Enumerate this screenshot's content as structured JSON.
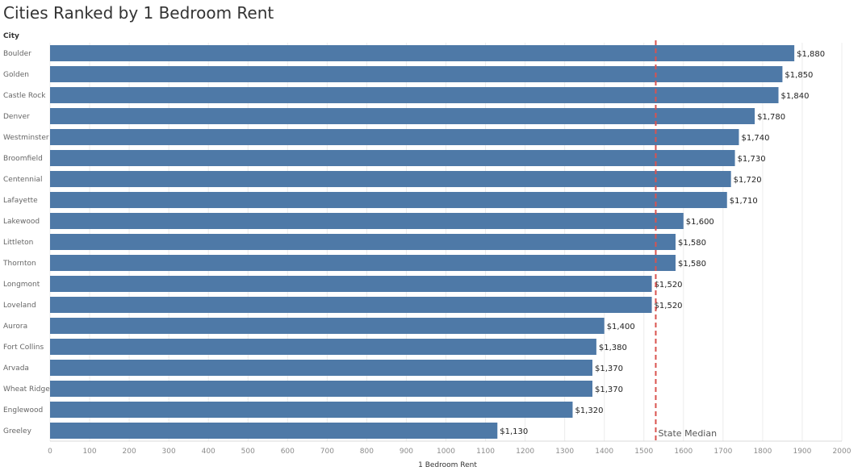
{
  "chart_data": {
    "type": "bar",
    "orientation": "horizontal",
    "title": "Cities Ranked by 1 Bedroom Rent",
    "row_header": "City",
    "xlabel": "1 Bedroom Rent",
    "categories": [
      "Boulder",
      "Golden",
      "Castle Rock",
      "Denver",
      "Westminster",
      "Broomfield",
      "Centennial",
      "Lafayette",
      "Lakewood",
      "Littleton",
      "Thornton",
      "Longmont",
      "Loveland",
      "Aurora",
      "Fort Collins",
      "Arvada",
      "Wheat Ridge",
      "Englewood",
      "Greeley"
    ],
    "values": [
      1880,
      1850,
      1840,
      1780,
      1740,
      1730,
      1720,
      1710,
      1600,
      1580,
      1580,
      1520,
      1520,
      1400,
      1380,
      1370,
      1370,
      1320,
      1130
    ],
    "value_labels": [
      "$1,880",
      "$1,850",
      "$1,840",
      "$1,780",
      "$1,740",
      "$1,730",
      "$1,720",
      "$1,710",
      "$1,600",
      "$1,580",
      "$1,580",
      "$1,520",
      "$1,520",
      "$1,400",
      "$1,380",
      "$1,370",
      "$1,370",
      "$1,320",
      "$1,130"
    ],
    "xlim": [
      0,
      2000
    ],
    "x_ticks": [
      "0",
      "100",
      "200",
      "300",
      "400",
      "500",
      "600",
      "700",
      "800",
      "900",
      "1000",
      "1100",
      "1200",
      "1300",
      "1400",
      "1500",
      "1600",
      "1700",
      "1800",
      "1900",
      "2000"
    ],
    "reference_line": {
      "label": "State Median",
      "value": 1530,
      "color": "#d9534f"
    },
    "bar_color": "#4e79a7",
    "grid": true
  }
}
